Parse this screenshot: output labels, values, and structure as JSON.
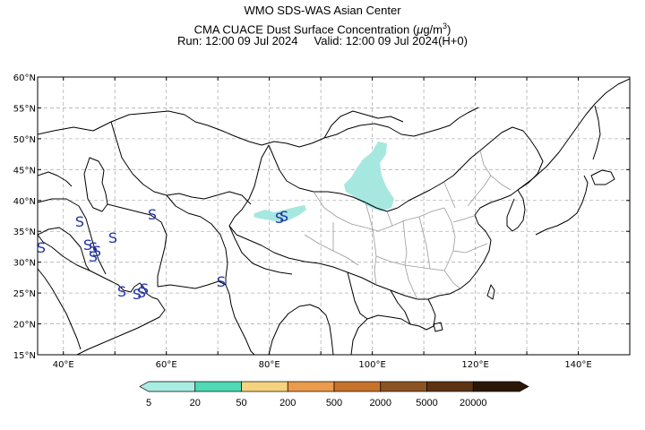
{
  "header": {
    "line1": "WMO SDS-WAS Asian Center",
    "line2_text": "CMA CUACE Dust Surface Concentration (",
    "line2_unit_mu": "μ",
    "line2_unit_rest": "g/m",
    "line2_unit_exp": "3",
    "line2_close": ")",
    "line3_run_label": "Run: 12:00 09 Jul 2024",
    "line3_valid_label": "Valid: 12:00 09 Jul 2024(H+0)"
  },
  "map": {
    "lon_range": [
      35,
      150
    ],
    "lat_range": [
      15,
      60
    ],
    "lat_ticks": [
      "15°N",
      "20°N",
      "25°N",
      "30°N",
      "35°N",
      "40°N",
      "45°N",
      "50°N",
      "55°N",
      "60°N"
    ],
    "lon_ticks": [
      "40°E",
      "60°E",
      "80°E",
      "100°E",
      "120°E",
      "140°E"
    ],
    "storm_marker": "S",
    "colors": {
      "coast": "#000000",
      "china_provinces": "#9a9a9a",
      "grid": "#b0b0b0",
      "dust_5_20": "#a6e8e0",
      "marker": "#2233aa"
    }
  },
  "colorbar": {
    "labels": [
      "5",
      "20",
      "50",
      "200",
      "500",
      "2000",
      "5000",
      "20000"
    ],
    "colors": [
      "#a8ece4",
      "#4fd9b5",
      "#f5d37f",
      "#ec9a4b",
      "#c7732b",
      "#8c5322",
      "#5c3414",
      "#2a1708"
    ]
  }
}
